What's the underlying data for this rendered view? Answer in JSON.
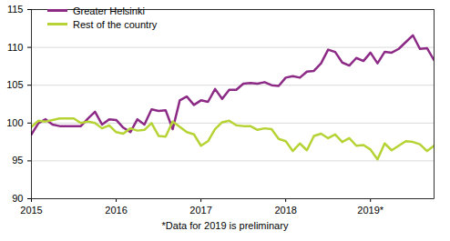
{
  "chart_data": {
    "type": "line",
    "caption": "*Data for 2019 is preliminary",
    "x": [
      2015,
      2015.083,
      2015.167,
      2015.25,
      2015.333,
      2015.417,
      2015.5,
      2015.583,
      2015.667,
      2015.75,
      2015.833,
      2015.917,
      2016,
      2016.083,
      2016.167,
      2016.25,
      2016.333,
      2016.417,
      2016.5,
      2016.583,
      2016.667,
      2016.75,
      2016.833,
      2016.917,
      2017,
      2017.083,
      2017.167,
      2017.25,
      2017.333,
      2017.417,
      2017.5,
      2017.583,
      2017.667,
      2017.75,
      2017.833,
      2017.917,
      2018,
      2018.083,
      2018.167,
      2018.25,
      2018.333,
      2018.417,
      2018.5,
      2018.583,
      2018.667,
      2018.75,
      2018.833,
      2018.917,
      2019,
      2019.083,
      2019.167,
      2019.25,
      2019.333,
      2019.417,
      2019.5,
      2019.583,
      2019.667,
      2019.75
    ],
    "series": [
      {
        "name": "Greater Helsinki",
        "color": "#8c2a86",
        "values": [
          98.5,
          100,
          100.5,
          99.8,
          99.6,
          99.6,
          99.6,
          99.6,
          100.6,
          101.5,
          99.8,
          100.5,
          100.4,
          99.4,
          98.8,
          100.5,
          99.8,
          101.8,
          101.6,
          101.7,
          99.2,
          103.0,
          103.5,
          102.4,
          103.0,
          102.8,
          104.5,
          103.2,
          104.4,
          104.4,
          105.2,
          105.3,
          105.2,
          105.4,
          105.0,
          104.9,
          106.0,
          106.2,
          106.0,
          106.8,
          106.9,
          107.9,
          109.7,
          109.4,
          108.0,
          107.6,
          108.6,
          108.2,
          109.3,
          107.9,
          109.4,
          109.3,
          109.8,
          110.7,
          111.6,
          109.8,
          109.9,
          108.3
        ]
      },
      {
        "name": "Rest of the country",
        "color": "#b5d334",
        "values": [
          99.5,
          100.3,
          100.2,
          100.4,
          100.6,
          100.6,
          100.6,
          100.0,
          100.2,
          100.0,
          99.3,
          99.7,
          98.8,
          98.6,
          99.3,
          99.0,
          99.1,
          100.0,
          98.3,
          98.2,
          100.2,
          99.5,
          98.8,
          98.5,
          97.0,
          97.6,
          99.2,
          100.1,
          100.3,
          99.7,
          99.6,
          99.6,
          99.1,
          99.3,
          99.2,
          97.9,
          97.6,
          96.3,
          97.3,
          96.4,
          98.3,
          98.6,
          98.0,
          98.5,
          97.5,
          98.0,
          97.0,
          97.1,
          96.5,
          95.2,
          97.3,
          96.4,
          97.0,
          97.6,
          97.5,
          97.2,
          96.3,
          97.0
        ]
      }
    ],
    "xlim": [
      2015,
      2019.75
    ],
    "xticks": [
      2015,
      2016,
      2017,
      2018,
      {
        "value": 2019,
        "label": "2019*"
      }
    ],
    "ylim": [
      90,
      115
    ],
    "yticks": [
      90,
      95,
      100,
      105,
      110,
      115
    ],
    "grid": true,
    "legend": "top-left"
  }
}
